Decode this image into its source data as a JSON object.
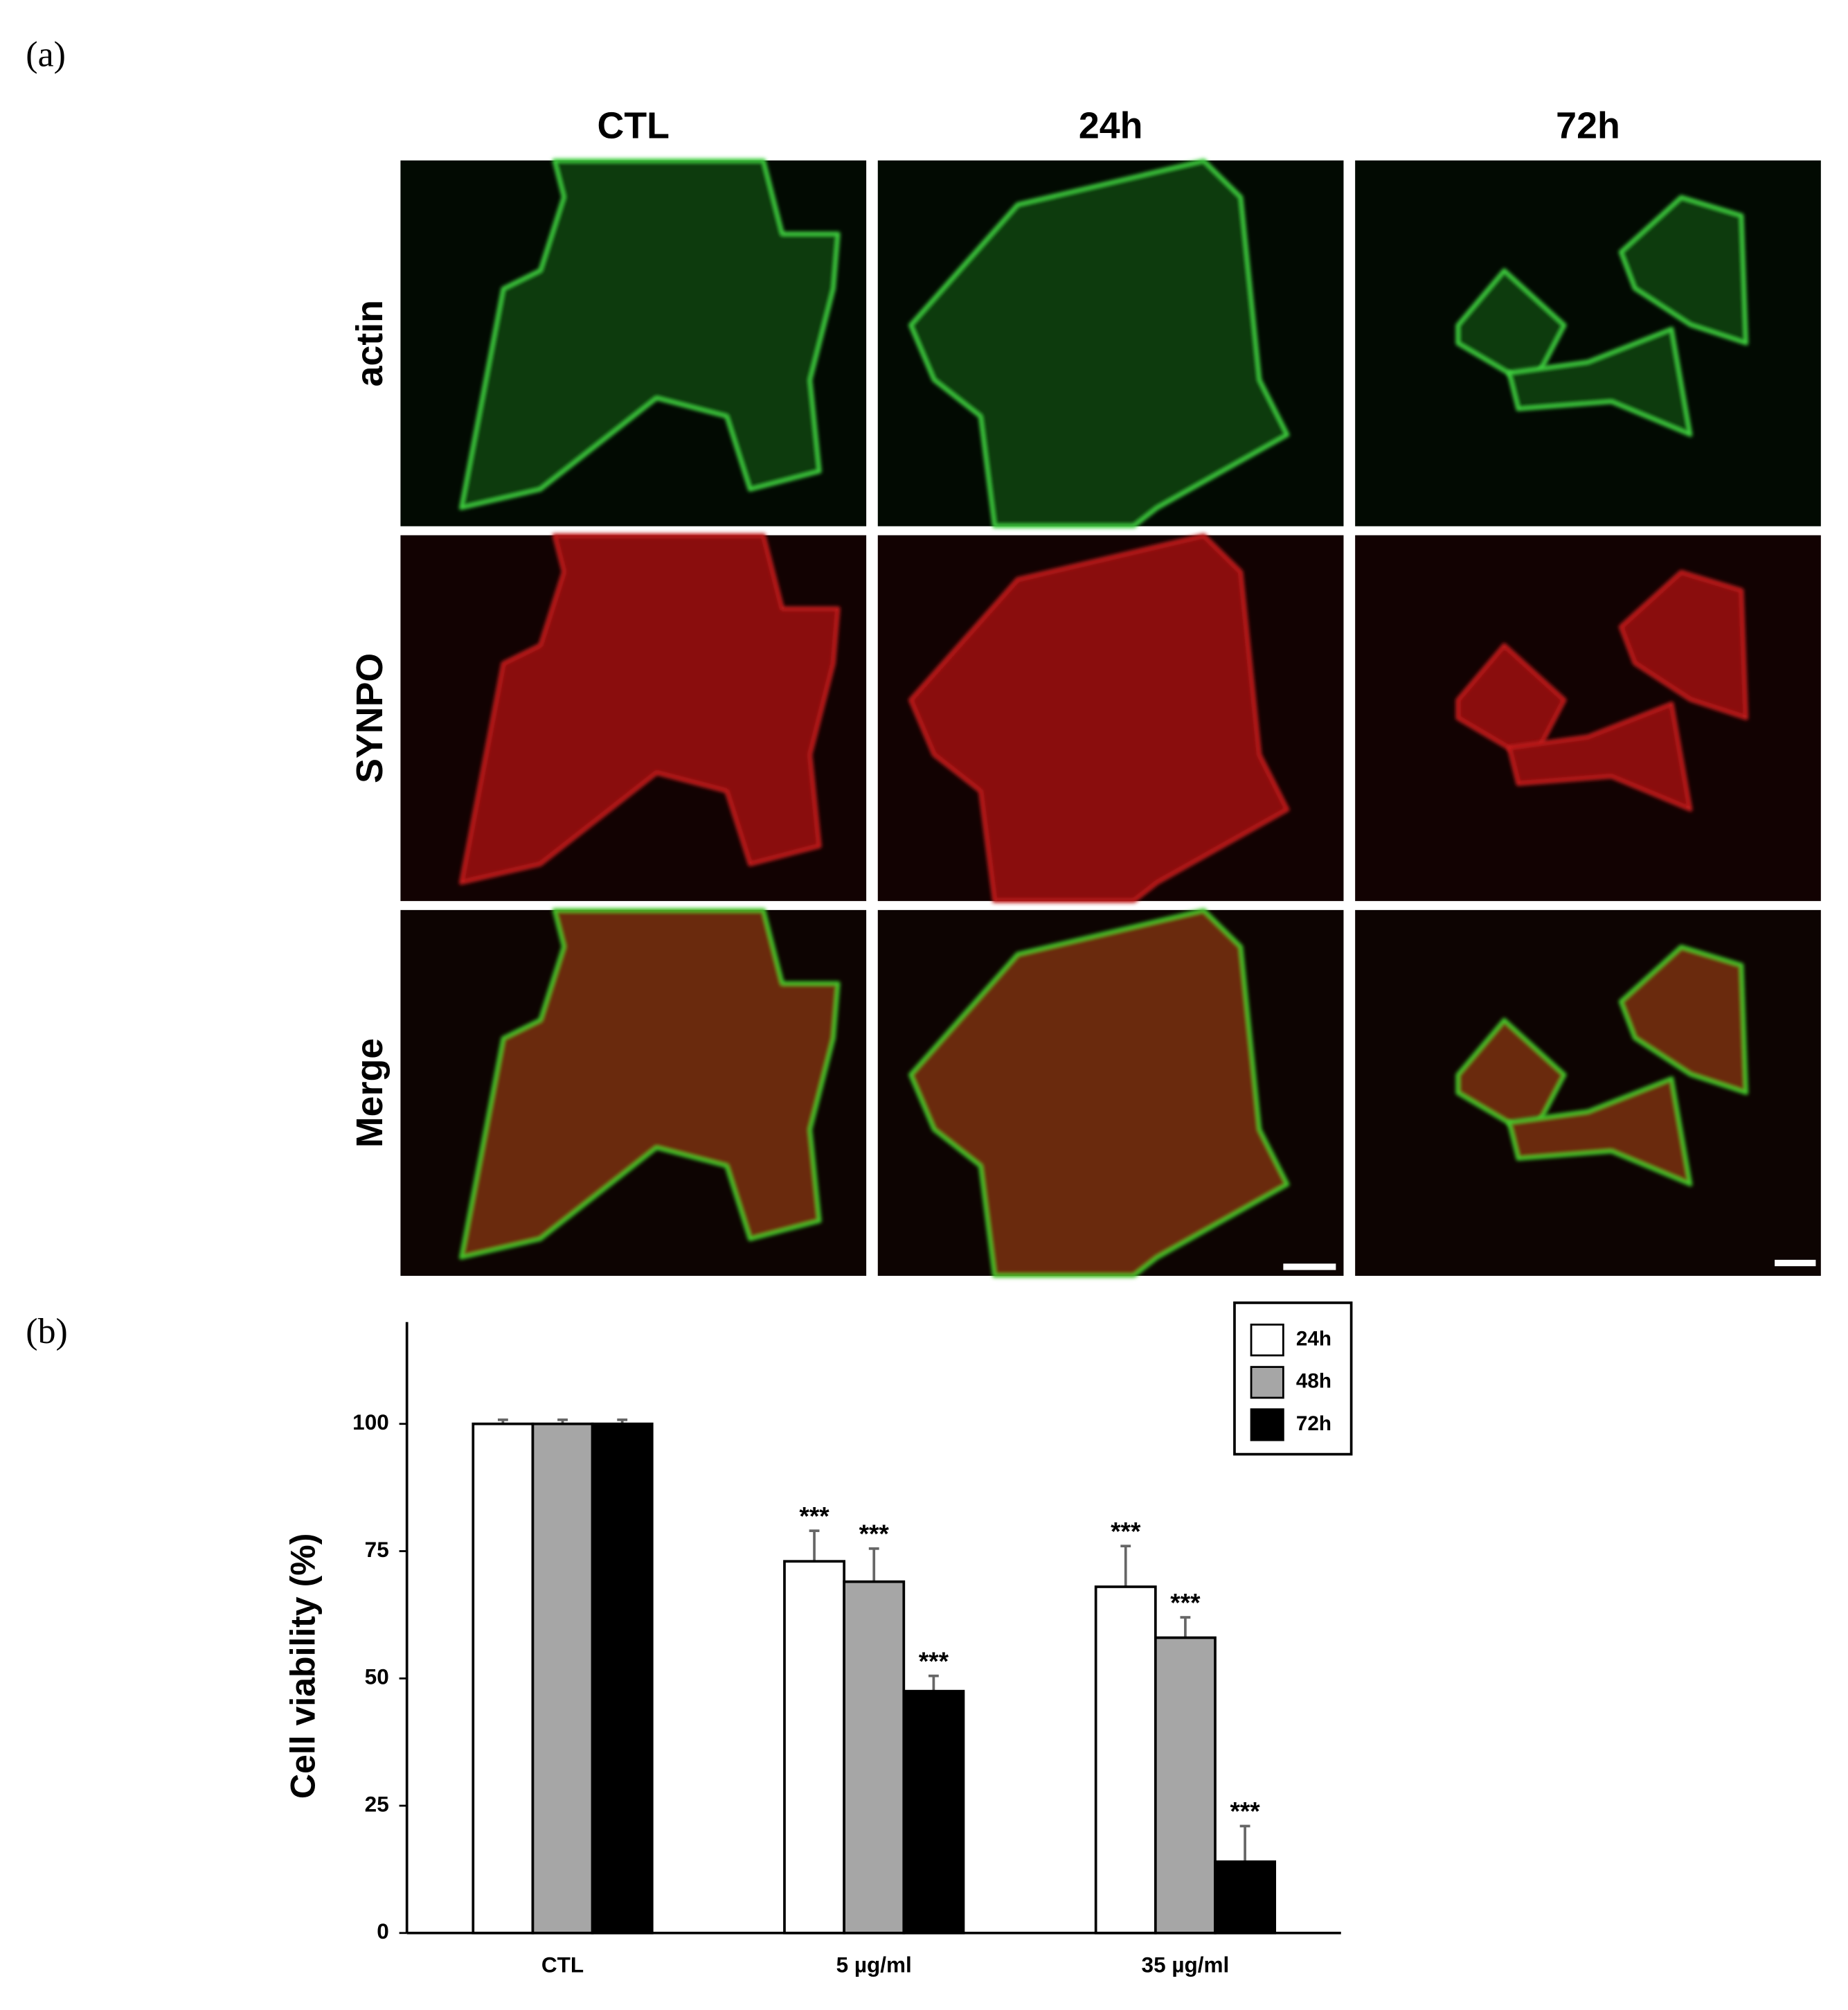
{
  "figure": {
    "panel_a_label": "(a)",
    "panel_b_label": "(b)",
    "columns": [
      "CTL",
      "24h",
      "72h"
    ],
    "rows": [
      "actin",
      "SYNPO",
      "Merge"
    ]
  },
  "chart_data": {
    "type": "bar",
    "y_label": "Cell viability (%)",
    "categories": [
      "CTL",
      "5 µg/ml",
      "35 µg/ml"
    ],
    "series": [
      {
        "name": "24h",
        "color": "#ffffff",
        "values": [
          100,
          73,
          68
        ],
        "errors": [
          0.8,
          6,
          8
        ],
        "annotations": [
          null,
          "***",
          "***"
        ]
      },
      {
        "name": "48h",
        "color": "#a6a6a6",
        "values": [
          100,
          69,
          58
        ],
        "errors": [
          0.8,
          6.5,
          4
        ],
        "annotations": [
          null,
          "***",
          "***"
        ]
      },
      {
        "name": "72h",
        "color": "#000000",
        "values": [
          100,
          47.5,
          14
        ],
        "errors": [
          0.8,
          3,
          7
        ],
        "annotations": [
          null,
          "***",
          "***"
        ]
      }
    ],
    "ylim": [
      0,
      120
    ],
    "yticks": [
      0,
      25,
      50,
      75,
      100
    ],
    "grid": false,
    "legend": "top-right"
  }
}
